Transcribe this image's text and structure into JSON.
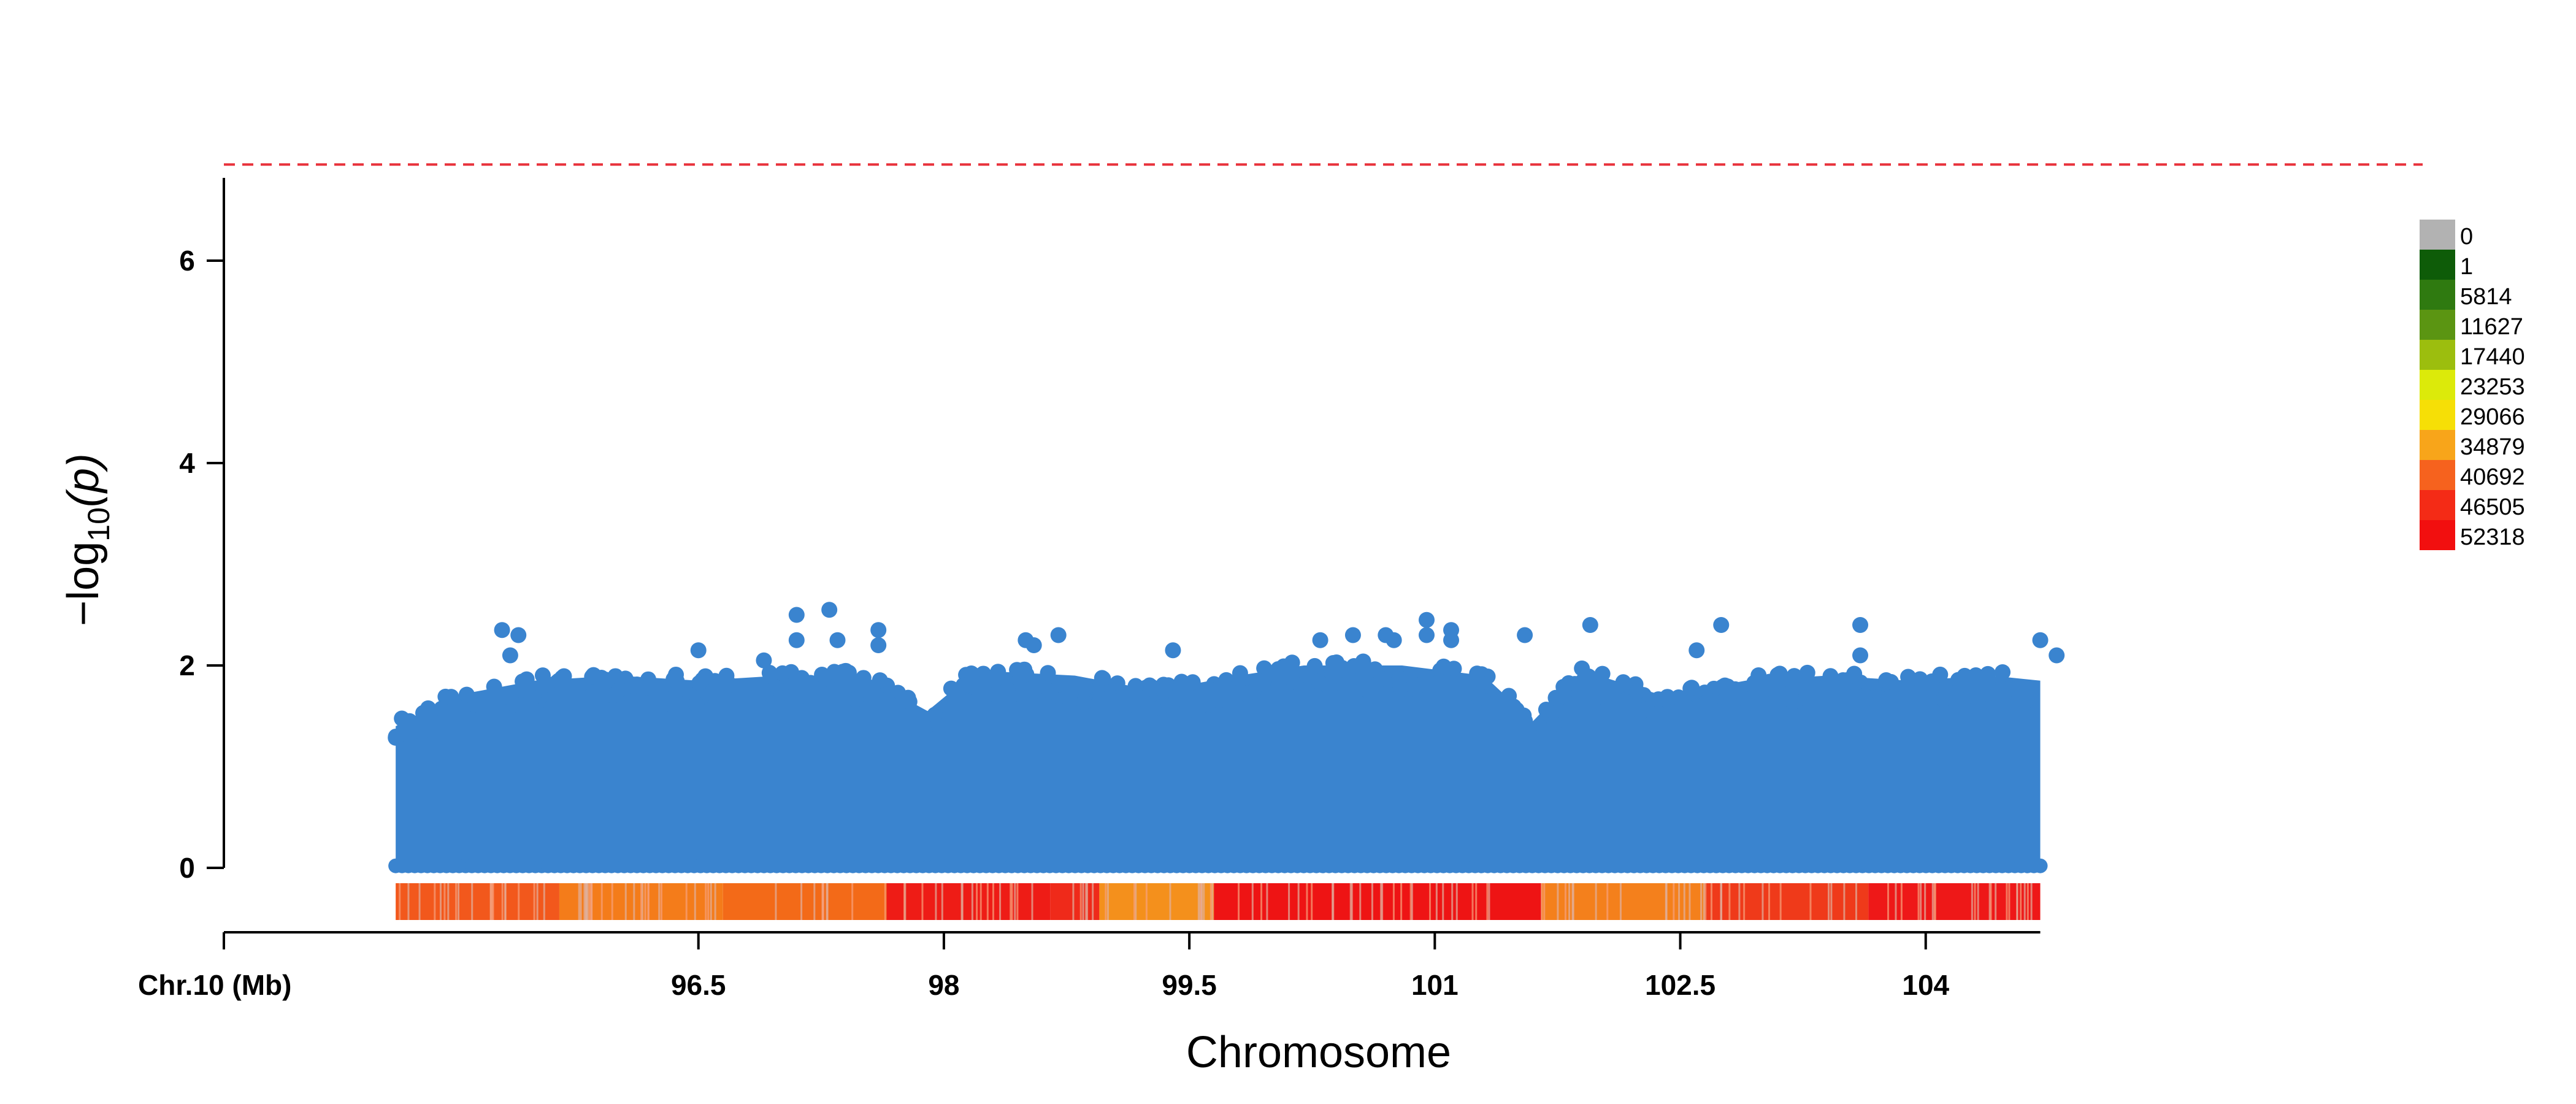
{
  "chart_data": {
    "type": "scatter",
    "title": "",
    "xlabel": "Chromosome",
    "ylabel_main": "−log",
    "ylabel_sub": "10",
    "ylabel_arg": "(p)",
    "chromosome_label": "Chr.10 (Mb)",
    "xlim": [
      93.6,
      105.8
    ],
    "ylim": [
      0,
      7
    ],
    "threshold": 6.95,
    "threshold_color": "#e8323c",
    "point_color": "#3a84cf",
    "x_ticks": [
      {
        "value": 96.5,
        "label": "96.5"
      },
      {
        "value": 98,
        "label": "98"
      },
      {
        "value": 99.5,
        "label": "99.5"
      },
      {
        "value": 101,
        "label": "101"
      },
      {
        "value": 102.5,
        "label": "102.5"
      },
      {
        "value": 104,
        "label": "104"
      }
    ],
    "y_ticks": [
      {
        "value": 0,
        "label": "0"
      },
      {
        "value": 2,
        "label": "2"
      },
      {
        "value": 4,
        "label": "4"
      },
      {
        "value": 6,
        "label": "6"
      }
    ],
    "data_range": [
      94.65,
      104.7
    ],
    "peak_points": [
      {
        "x": 95.3,
        "y": 2.35
      },
      {
        "x": 95.4,
        "y": 2.3
      },
      {
        "x": 95.35,
        "y": 2.1
      },
      {
        "x": 96.5,
        "y": 2.15
      },
      {
        "x": 96.9,
        "y": 2.05
      },
      {
        "x": 97.1,
        "y": 2.5
      },
      {
        "x": 97.1,
        "y": 2.25
      },
      {
        "x": 97.3,
        "y": 2.55
      },
      {
        "x": 97.35,
        "y": 2.25
      },
      {
        "x": 97.6,
        "y": 2.35
      },
      {
        "x": 97.6,
        "y": 2.2
      },
      {
        "x": 98.5,
        "y": 2.25
      },
      {
        "x": 98.55,
        "y": 2.2
      },
      {
        "x": 98.7,
        "y": 2.3
      },
      {
        "x": 99.4,
        "y": 2.15
      },
      {
        "x": 100.3,
        "y": 2.25
      },
      {
        "x": 100.5,
        "y": 2.3
      },
      {
        "x": 100.7,
        "y": 2.3
      },
      {
        "x": 100.75,
        "y": 2.25
      },
      {
        "x": 100.95,
        "y": 2.45
      },
      {
        "x": 100.95,
        "y": 2.3
      },
      {
        "x": 101.1,
        "y": 2.35
      },
      {
        "x": 101.1,
        "y": 2.25
      },
      {
        "x": 101.55,
        "y": 2.3
      },
      {
        "x": 101.95,
        "y": 2.4
      },
      {
        "x": 102.6,
        "y": 2.15
      },
      {
        "x": 102.75,
        "y": 2.4
      },
      {
        "x": 103.6,
        "y": 2.4
      },
      {
        "x": 103.6,
        "y": 2.1
      },
      {
        "x": 104.7,
        "y": 2.25
      },
      {
        "x": 104.8,
        "y": 2.1
      }
    ],
    "envelope": [
      {
        "x": 94.65,
        "y": 1.4
      },
      {
        "x": 95.0,
        "y": 1.7
      },
      {
        "x": 95.5,
        "y": 1.85
      },
      {
        "x": 96.0,
        "y": 1.9
      },
      {
        "x": 96.5,
        "y": 1.85
      },
      {
        "x": 97.0,
        "y": 1.9
      },
      {
        "x": 97.5,
        "y": 1.9
      },
      {
        "x": 97.9,
        "y": 1.55
      },
      {
        "x": 98.2,
        "y": 1.95
      },
      {
        "x": 98.8,
        "y": 1.9
      },
      {
        "x": 99.3,
        "y": 1.75
      },
      {
        "x": 99.8,
        "y": 1.9
      },
      {
        "x": 100.2,
        "y": 2.0
      },
      {
        "x": 100.8,
        "y": 2.0
      },
      {
        "x": 101.3,
        "y": 1.9
      },
      {
        "x": 101.6,
        "y": 1.45
      },
      {
        "x": 101.9,
        "y": 1.95
      },
      {
        "x": 102.4,
        "y": 1.7
      },
      {
        "x": 102.9,
        "y": 1.85
      },
      {
        "x": 103.4,
        "y": 1.9
      },
      {
        "x": 103.9,
        "y": 1.85
      },
      {
        "x": 104.4,
        "y": 1.9
      },
      {
        "x": 104.7,
        "y": 1.85
      }
    ],
    "density_strip": [
      {
        "from": 94.65,
        "to": 95.65,
        "color": "#f2581c"
      },
      {
        "from": 95.65,
        "to": 96.65,
        "color": "#f47c1a"
      },
      {
        "from": 96.65,
        "to": 97.65,
        "color": "#f36a18"
      },
      {
        "from": 97.65,
        "to": 98.65,
        "color": "#ee1c16"
      },
      {
        "from": 98.65,
        "to": 98.95,
        "color": "#ef2a1a"
      },
      {
        "from": 98.95,
        "to": 99.65,
        "color": "#f4901c"
      },
      {
        "from": 99.65,
        "to": 101.65,
        "color": "#ee1414"
      },
      {
        "from": 101.65,
        "to": 102.65,
        "color": "#f4801c"
      },
      {
        "from": 102.65,
        "to": 103.65,
        "color": "#ef3a1a"
      },
      {
        "from": 103.65,
        "to": 104.7,
        "color": "#ee1818"
      }
    ],
    "legend": [
      {
        "label": "0",
        "color": "#b2b2b2"
      },
      {
        "label": "1",
        "color": "#0e5c08"
      },
      {
        "label": "5814",
        "color": "#2f7a10"
      },
      {
        "label": "11627",
        "color": "#5b9512"
      },
      {
        "label": "17440",
        "color": "#9cbe0e"
      },
      {
        "label": "23253",
        "color": "#dcea0a"
      },
      {
        "label": "29066",
        "color": "#f6df06"
      },
      {
        "label": "34879",
        "color": "#f8a51a"
      },
      {
        "label": "40692",
        "color": "#f6621e"
      },
      {
        "label": "46505",
        "color": "#f42b16"
      },
      {
        "label": "52318",
        "color": "#f20f0f"
      }
    ]
  }
}
